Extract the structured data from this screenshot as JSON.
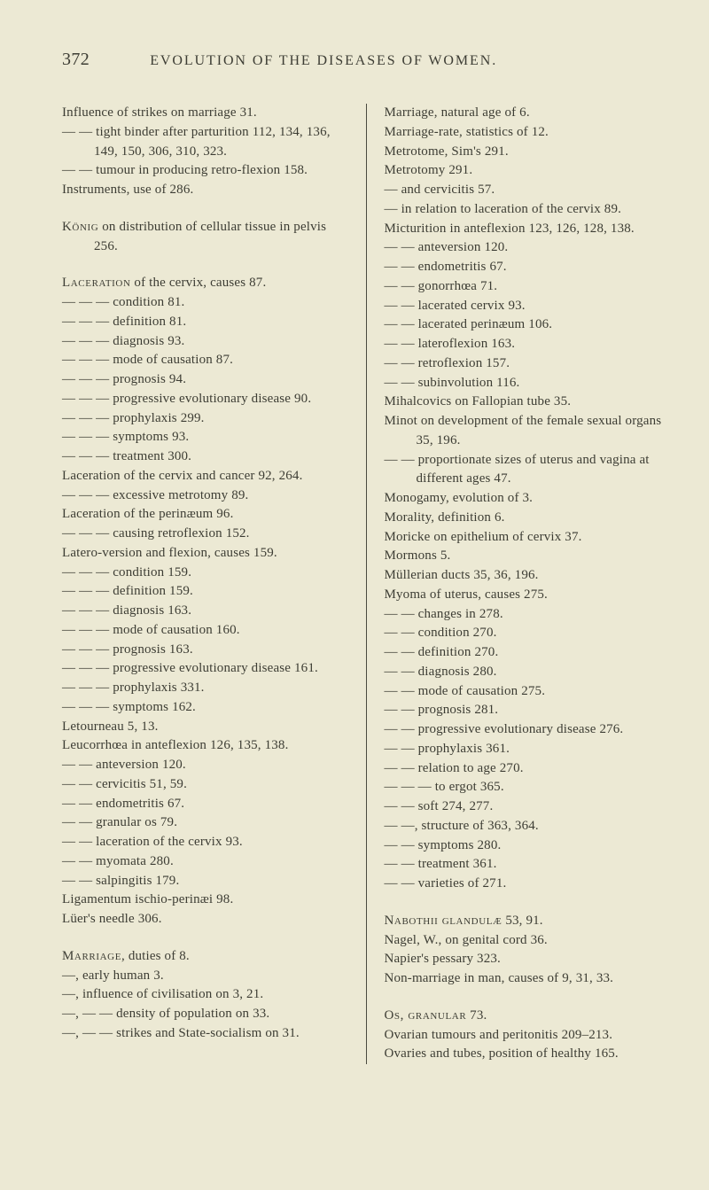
{
  "page_number": "372",
  "running_head": "EVOLUTION OF THE DISEASES OF WOMEN.",
  "left": {
    "para1": [
      "Influence of strikes on marriage 31.",
      "— — tight binder after parturition 112, 134, 136, 149, 150, 306, 310, 323.",
      "— — tumour in producing retro-flexion 158.",
      "Instruments, use of 286."
    ],
    "para2_lead": "König",
    "para2_rest": " on distribution of cellular tissue in pelvis 256.",
    "para3_lead": "Laceration",
    "para3_first_rest": " of the cervix, causes 87.",
    "para3_rest": [
      "— — — condition 81.",
      "— — — definition 81.",
      "— — — diagnosis 93.",
      "— — — mode of causation 87.",
      "— — — prognosis 94.",
      "— — — progressive evolutionary disease 90.",
      "— — — prophylaxis 299.",
      "— — — symptoms 93.",
      "— — — treatment 300.",
      "Laceration of the cervix and cancer 92, 264.",
      "— — — excessive metrotomy 89.",
      "Laceration of the perinæum 96.",
      "— — — causing retroflexion 152.",
      "Latero-version and flexion, causes 159.",
      "— — — condition 159.",
      "— — — definition 159.",
      "— — — diagnosis 163.",
      "— — — mode of causation 160.",
      "— — — prognosis 163.",
      "— — — progressive evolutionary disease 161.",
      "— — — prophylaxis 331.",
      "— — — symptoms 162.",
      "Letourneau 5, 13.",
      "Leucorrhœa in anteflexion 126, 135, 138.",
      "— — anteversion 120.",
      "— — cervicitis 51, 59.",
      "— — endometritis 67.",
      "— — granular os 79.",
      "— — laceration of the cervix 93.",
      "— — myomata 280.",
      "— — salpingitis 179.",
      "Ligamentum ischio-perinæi 98.",
      "Lüer's needle 306."
    ],
    "para4_lead": "Marriage",
    "para4_first_rest": ", duties of 8.",
    "para4_rest": [
      "—, early human 3.",
      "—, influence of civilisation on 3, 21.",
      "—, — — density of population on 33.",
      "—, — — strikes and State-socialism on 31."
    ]
  },
  "right": {
    "para1": [
      "Marriage, natural age of 6.",
      "Marriage-rate, statistics of 12.",
      "Metrotome, Sim's 291.",
      "Metrotomy 291.",
      "— and cervicitis 57.",
      "— in relation to laceration of the cervix 89.",
      "Micturition in anteflexion 123, 126, 128, 138.",
      "— — anteversion 120.",
      "— — endometritis 67.",
      "— — gonorrhœa 71.",
      "— — lacerated cervix 93.",
      "— — lacerated perinæum 106.",
      "— — lateroflexion 163.",
      "— — retroflexion 157.",
      "— — subinvolution 116.",
      "Mihalcovics on Fallopian tube 35.",
      "Minot on development of the female sexual organs 35, 196.",
      "— — proportionate sizes of uterus and vagina at different ages 47.",
      "Monogamy, evolution of 3.",
      "Morality, definition 6.",
      "Moricke on epithelium of cervix 37.",
      "Mormons 5.",
      "Müllerian ducts 35, 36, 196.",
      "Myoma of uterus, causes 275.",
      "— — changes in 278.",
      "— — condition 270.",
      "— — definition 270.",
      "— — diagnosis 280.",
      "— — mode of causation 275.",
      "— — prognosis 281.",
      "— — progressive evolutionary disease 276.",
      "— — prophylaxis 361.",
      "— — relation to age 270.",
      "— — — to ergot 365.",
      "— — soft 274, 277.",
      "— —, structure of 363, 364.",
      "— — symptoms 280.",
      "— — treatment 361.",
      "— — varieties of 271."
    ],
    "para2_lead": "Nabothii glandulæ",
    "para2_first_rest": " 53, 91.",
    "para2_rest": [
      "Nagel, W., on genital cord 36.",
      "Napier's pessary 323.",
      "Non-marriage in man, causes of 9, 31, 33."
    ],
    "para3_lead": "Os, granular",
    "para3_first_rest": " 73.",
    "para3_rest": [
      "Ovarian tumours and peritonitis 209–213.",
      "Ovaries and tubes, position of healthy 165."
    ]
  }
}
